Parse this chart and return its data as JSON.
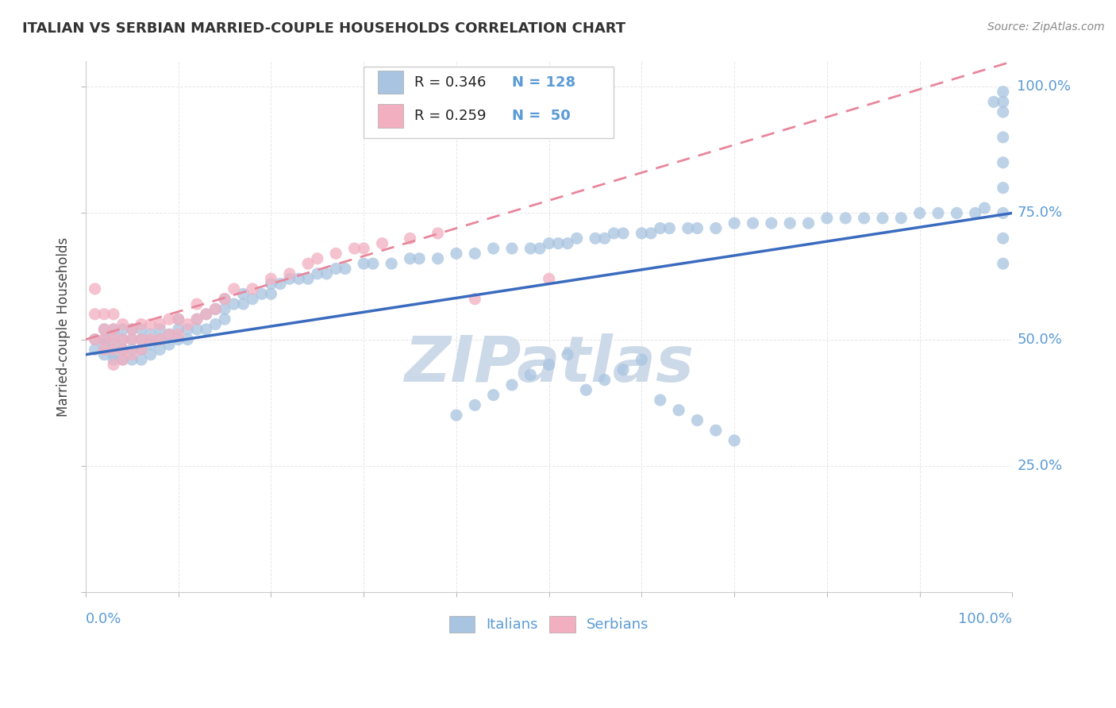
{
  "title": "ITALIAN VS SERBIAN MARRIED-COUPLE HOUSEHOLDS CORRELATION CHART",
  "source": "Source: ZipAtlas.com",
  "ylabel": "Married-couple Households",
  "ytick_labels": [
    "25.0%",
    "50.0%",
    "75.0%",
    "100.0%"
  ],
  "ytick_values": [
    0.25,
    0.5,
    0.75,
    1.0
  ],
  "xlim": [
    0.0,
    1.0
  ],
  "ylim": [
    0.0,
    1.05
  ],
  "legend_blue_R": "0.346",
  "legend_blue_N": "128",
  "legend_pink_R": "0.259",
  "legend_pink_N": "50",
  "blue_dot_color": "#a8c4e0",
  "pink_dot_color": "#f2afc0",
  "blue_line_color": "#3a6bbf",
  "pink_line_color": "#e8879c",
  "title_color": "#333333",
  "axis_label_color": "#5b9bd5",
  "watermark_color": "#ccd9e8",
  "background_color": "#ffffff",
  "grid_color": "#e0e0e0",
  "blue_scatter_x": [
    0.01,
    0.01,
    0.02,
    0.02,
    0.02,
    0.02,
    0.03,
    0.03,
    0.03,
    0.03,
    0.03,
    0.04,
    0.04,
    0.04,
    0.04,
    0.05,
    0.05,
    0.05,
    0.05,
    0.06,
    0.06,
    0.06,
    0.06,
    0.07,
    0.07,
    0.07,
    0.08,
    0.08,
    0.08,
    0.09,
    0.09,
    0.1,
    0.1,
    0.1,
    0.11,
    0.11,
    0.12,
    0.12,
    0.13,
    0.13,
    0.14,
    0.14,
    0.15,
    0.15,
    0.15,
    0.16,
    0.17,
    0.17,
    0.18,
    0.19,
    0.2,
    0.2,
    0.21,
    0.22,
    0.23,
    0.24,
    0.25,
    0.26,
    0.27,
    0.28,
    0.3,
    0.31,
    0.33,
    0.35,
    0.36,
    0.38,
    0.4,
    0.42,
    0.44,
    0.46,
    0.48,
    0.49,
    0.5,
    0.51,
    0.52,
    0.53,
    0.55,
    0.56,
    0.57,
    0.58,
    0.6,
    0.61,
    0.62,
    0.63,
    0.65,
    0.66,
    0.68,
    0.7,
    0.72,
    0.74,
    0.76,
    0.78,
    0.8,
    0.82,
    0.84,
    0.86,
    0.88,
    0.9,
    0.92,
    0.94,
    0.96,
    0.97,
    0.98,
    0.99,
    0.99,
    0.99,
    0.99,
    0.99,
    0.99,
    0.99,
    0.99,
    0.99,
    0.4,
    0.42,
    0.44,
    0.46,
    0.48,
    0.5,
    0.52,
    0.54,
    0.56,
    0.58,
    0.6,
    0.62,
    0.64,
    0.66,
    0.68,
    0.7
  ],
  "blue_scatter_y": [
    0.48,
    0.5,
    0.47,
    0.49,
    0.5,
    0.52,
    0.46,
    0.47,
    0.49,
    0.51,
    0.52,
    0.46,
    0.48,
    0.5,
    0.52,
    0.46,
    0.48,
    0.5,
    0.52,
    0.46,
    0.48,
    0.5,
    0.52,
    0.47,
    0.49,
    0.51,
    0.48,
    0.5,
    0.52,
    0.49,
    0.51,
    0.5,
    0.52,
    0.54,
    0.5,
    0.52,
    0.52,
    0.54,
    0.52,
    0.55,
    0.53,
    0.56,
    0.54,
    0.56,
    0.58,
    0.57,
    0.57,
    0.59,
    0.58,
    0.59,
    0.59,
    0.61,
    0.61,
    0.62,
    0.62,
    0.62,
    0.63,
    0.63,
    0.64,
    0.64,
    0.65,
    0.65,
    0.65,
    0.66,
    0.66,
    0.66,
    0.67,
    0.67,
    0.68,
    0.68,
    0.68,
    0.68,
    0.69,
    0.69,
    0.69,
    0.7,
    0.7,
    0.7,
    0.71,
    0.71,
    0.71,
    0.71,
    0.72,
    0.72,
    0.72,
    0.72,
    0.72,
    0.73,
    0.73,
    0.73,
    0.73,
    0.73,
    0.74,
    0.74,
    0.74,
    0.74,
    0.74,
    0.75,
    0.75,
    0.75,
    0.75,
    0.76,
    0.97,
    0.99,
    0.97,
    0.95,
    0.9,
    0.85,
    0.8,
    0.75,
    0.7,
    0.65,
    0.35,
    0.37,
    0.39,
    0.41,
    0.43,
    0.45,
    0.47,
    0.4,
    0.42,
    0.44,
    0.46,
    0.38,
    0.36,
    0.34,
    0.32,
    0.3
  ],
  "pink_scatter_x": [
    0.01,
    0.01,
    0.01,
    0.02,
    0.02,
    0.02,
    0.02,
    0.03,
    0.03,
    0.03,
    0.03,
    0.03,
    0.04,
    0.04,
    0.04,
    0.04,
    0.05,
    0.05,
    0.05,
    0.06,
    0.06,
    0.06,
    0.07,
    0.07,
    0.08,
    0.08,
    0.09,
    0.09,
    0.1,
    0.1,
    0.11,
    0.12,
    0.12,
    0.13,
    0.14,
    0.15,
    0.16,
    0.18,
    0.2,
    0.22,
    0.24,
    0.25,
    0.27,
    0.29,
    0.3,
    0.32,
    0.35,
    0.38,
    0.42,
    0.5
  ],
  "pink_scatter_y": [
    0.5,
    0.55,
    0.6,
    0.48,
    0.5,
    0.52,
    0.55,
    0.45,
    0.48,
    0.5,
    0.52,
    0.55,
    0.46,
    0.48,
    0.5,
    0.53,
    0.47,
    0.5,
    0.52,
    0.48,
    0.5,
    0.53,
    0.5,
    0.53,
    0.5,
    0.53,
    0.51,
    0.54,
    0.51,
    0.54,
    0.53,
    0.54,
    0.57,
    0.55,
    0.56,
    0.58,
    0.6,
    0.6,
    0.62,
    0.63,
    0.65,
    0.66,
    0.67,
    0.68,
    0.68,
    0.69,
    0.7,
    0.71,
    0.58,
    0.62
  ]
}
